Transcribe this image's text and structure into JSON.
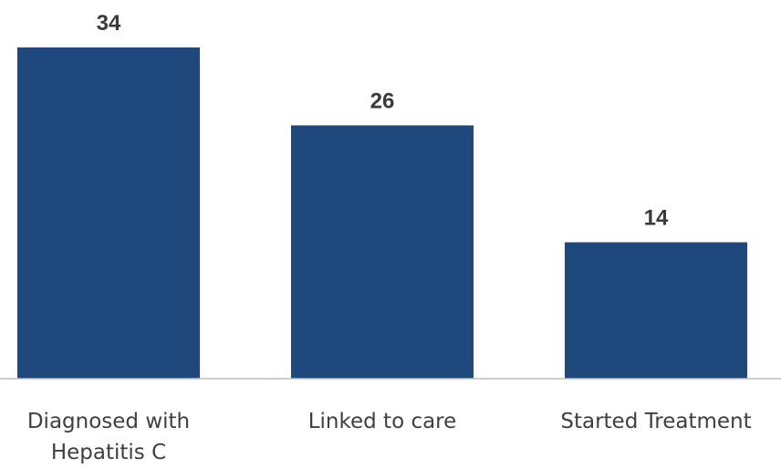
{
  "chart_data": {
    "type": "bar",
    "categories": [
      [
        "Diagnosed with",
        "Hepatitis C"
      ],
      [
        "Linked to care"
      ],
      [
        "Started Treatment"
      ]
    ],
    "values": [
      34,
      26,
      14
    ],
    "bar_color": "#1f497d",
    "axis_color": "#bfbfbf",
    "title": "",
    "xlabel": "",
    "ylabel": "",
    "ylim": [
      0,
      34
    ],
    "grid": false,
    "data_labels": true
  }
}
